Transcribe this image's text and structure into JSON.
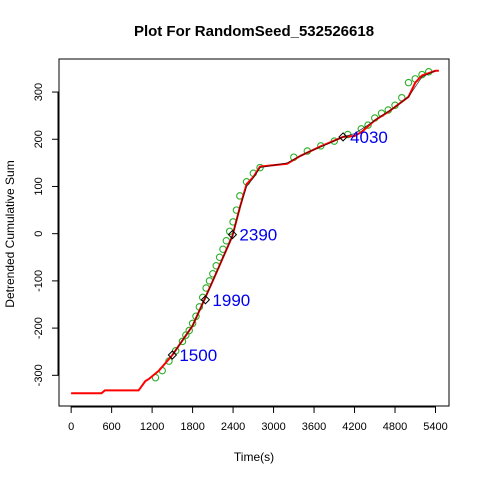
{
  "chart_data": {
    "type": "line",
    "title": "Plot For RandomSeed_532526618",
    "xlabel": "Time(s)",
    "ylabel": "Detrended Cumulative Sum",
    "xlim": [
      -180,
      5600
    ],
    "ylim": [
      -365,
      370
    ],
    "xticks": [
      0,
      600,
      1200,
      1800,
      2400,
      3000,
      3600,
      4200,
      4800,
      5400
    ],
    "yticks": [
      -300,
      -200,
      -100,
      0,
      100,
      200,
      300
    ],
    "grid": false,
    "series": [
      {
        "role": "raw-cumsum-markers",
        "color": "#2ab02a",
        "marker": "open-circle",
        "x": [
          1250,
          1350,
          1450,
          1550,
          1650,
          1700,
          1750,
          1800,
          1850,
          1900,
          1950,
          2000,
          2050,
          2100,
          2150,
          2200,
          2250,
          2300,
          2350,
          2400,
          2450,
          2500,
          2600,
          2700,
          2800,
          3300,
          3500,
          3700,
          3900,
          4100,
          4300,
          4400,
          4500,
          4600,
          4700,
          4800,
          4900,
          5000,
          5100,
          5200,
          5300
        ],
        "y": [
          -305,
          -290,
          -270,
          -248,
          -228,
          -215,
          -205,
          -190,
          -175,
          -155,
          -135,
          -115,
          -100,
          -85,
          -68,
          -50,
          -33,
          -15,
          5,
          25,
          50,
          80,
          110,
          128,
          140,
          162,
          175,
          186,
          196,
          210,
          222,
          230,
          245,
          255,
          262,
          272,
          288,
          320,
          328,
          337,
          343
        ]
      },
      {
        "role": "segmented-fit",
        "color": "#ff0000",
        "x": [
          0,
          450,
          500,
          1000,
          1100,
          1150,
          1300,
          1500,
          1800,
          2100,
          2390,
          2500,
          2600,
          2700,
          2800,
          3200,
          3400,
          3700,
          4030,
          4200,
          4300,
          4500,
          4700,
          5000,
          5100,
          5200,
          5400,
          5450
        ],
        "y": [
          -338,
          -338,
          -332,
          -332,
          -312,
          -308,
          -290,
          -257,
          -195,
          -100,
          -5,
          55,
          105,
          120,
          142,
          148,
          165,
          185,
          205,
          207,
          215,
          240,
          258,
          290,
          320,
          335,
          345,
          345
        ]
      },
      {
        "role": "smoothed-overlay",
        "color": "#111111",
        "x": [
          1500,
          1800,
          2100,
          2390,
          2500,
          2600,
          2700,
          2800,
          3200,
          3500,
          3800,
          4030,
          4200,
          4400,
          4600,
          4800,
          5000,
          5200,
          5400
        ],
        "y": [
          -257,
          -195,
          -100,
          -5,
          55,
          100,
          118,
          140,
          150,
          172,
          190,
          205,
          212,
          230,
          250,
          268,
          290,
          332,
          345
        ]
      }
    ],
    "changepoints": [
      {
        "x": 1500,
        "y": -257,
        "label": "1500"
      },
      {
        "x": 1990,
        "y": -140,
        "label": "1990"
      },
      {
        "x": 2390,
        "y": -2,
        "label": "2390"
      },
      {
        "x": 4030,
        "y": 205,
        "label": "4030"
      }
    ],
    "colors": {
      "fit_line": "#ff0000",
      "markers": "#2ab02a",
      "overlay": "#111111",
      "changepoint_labels": "#0000ee",
      "frame": "#000000"
    }
  }
}
